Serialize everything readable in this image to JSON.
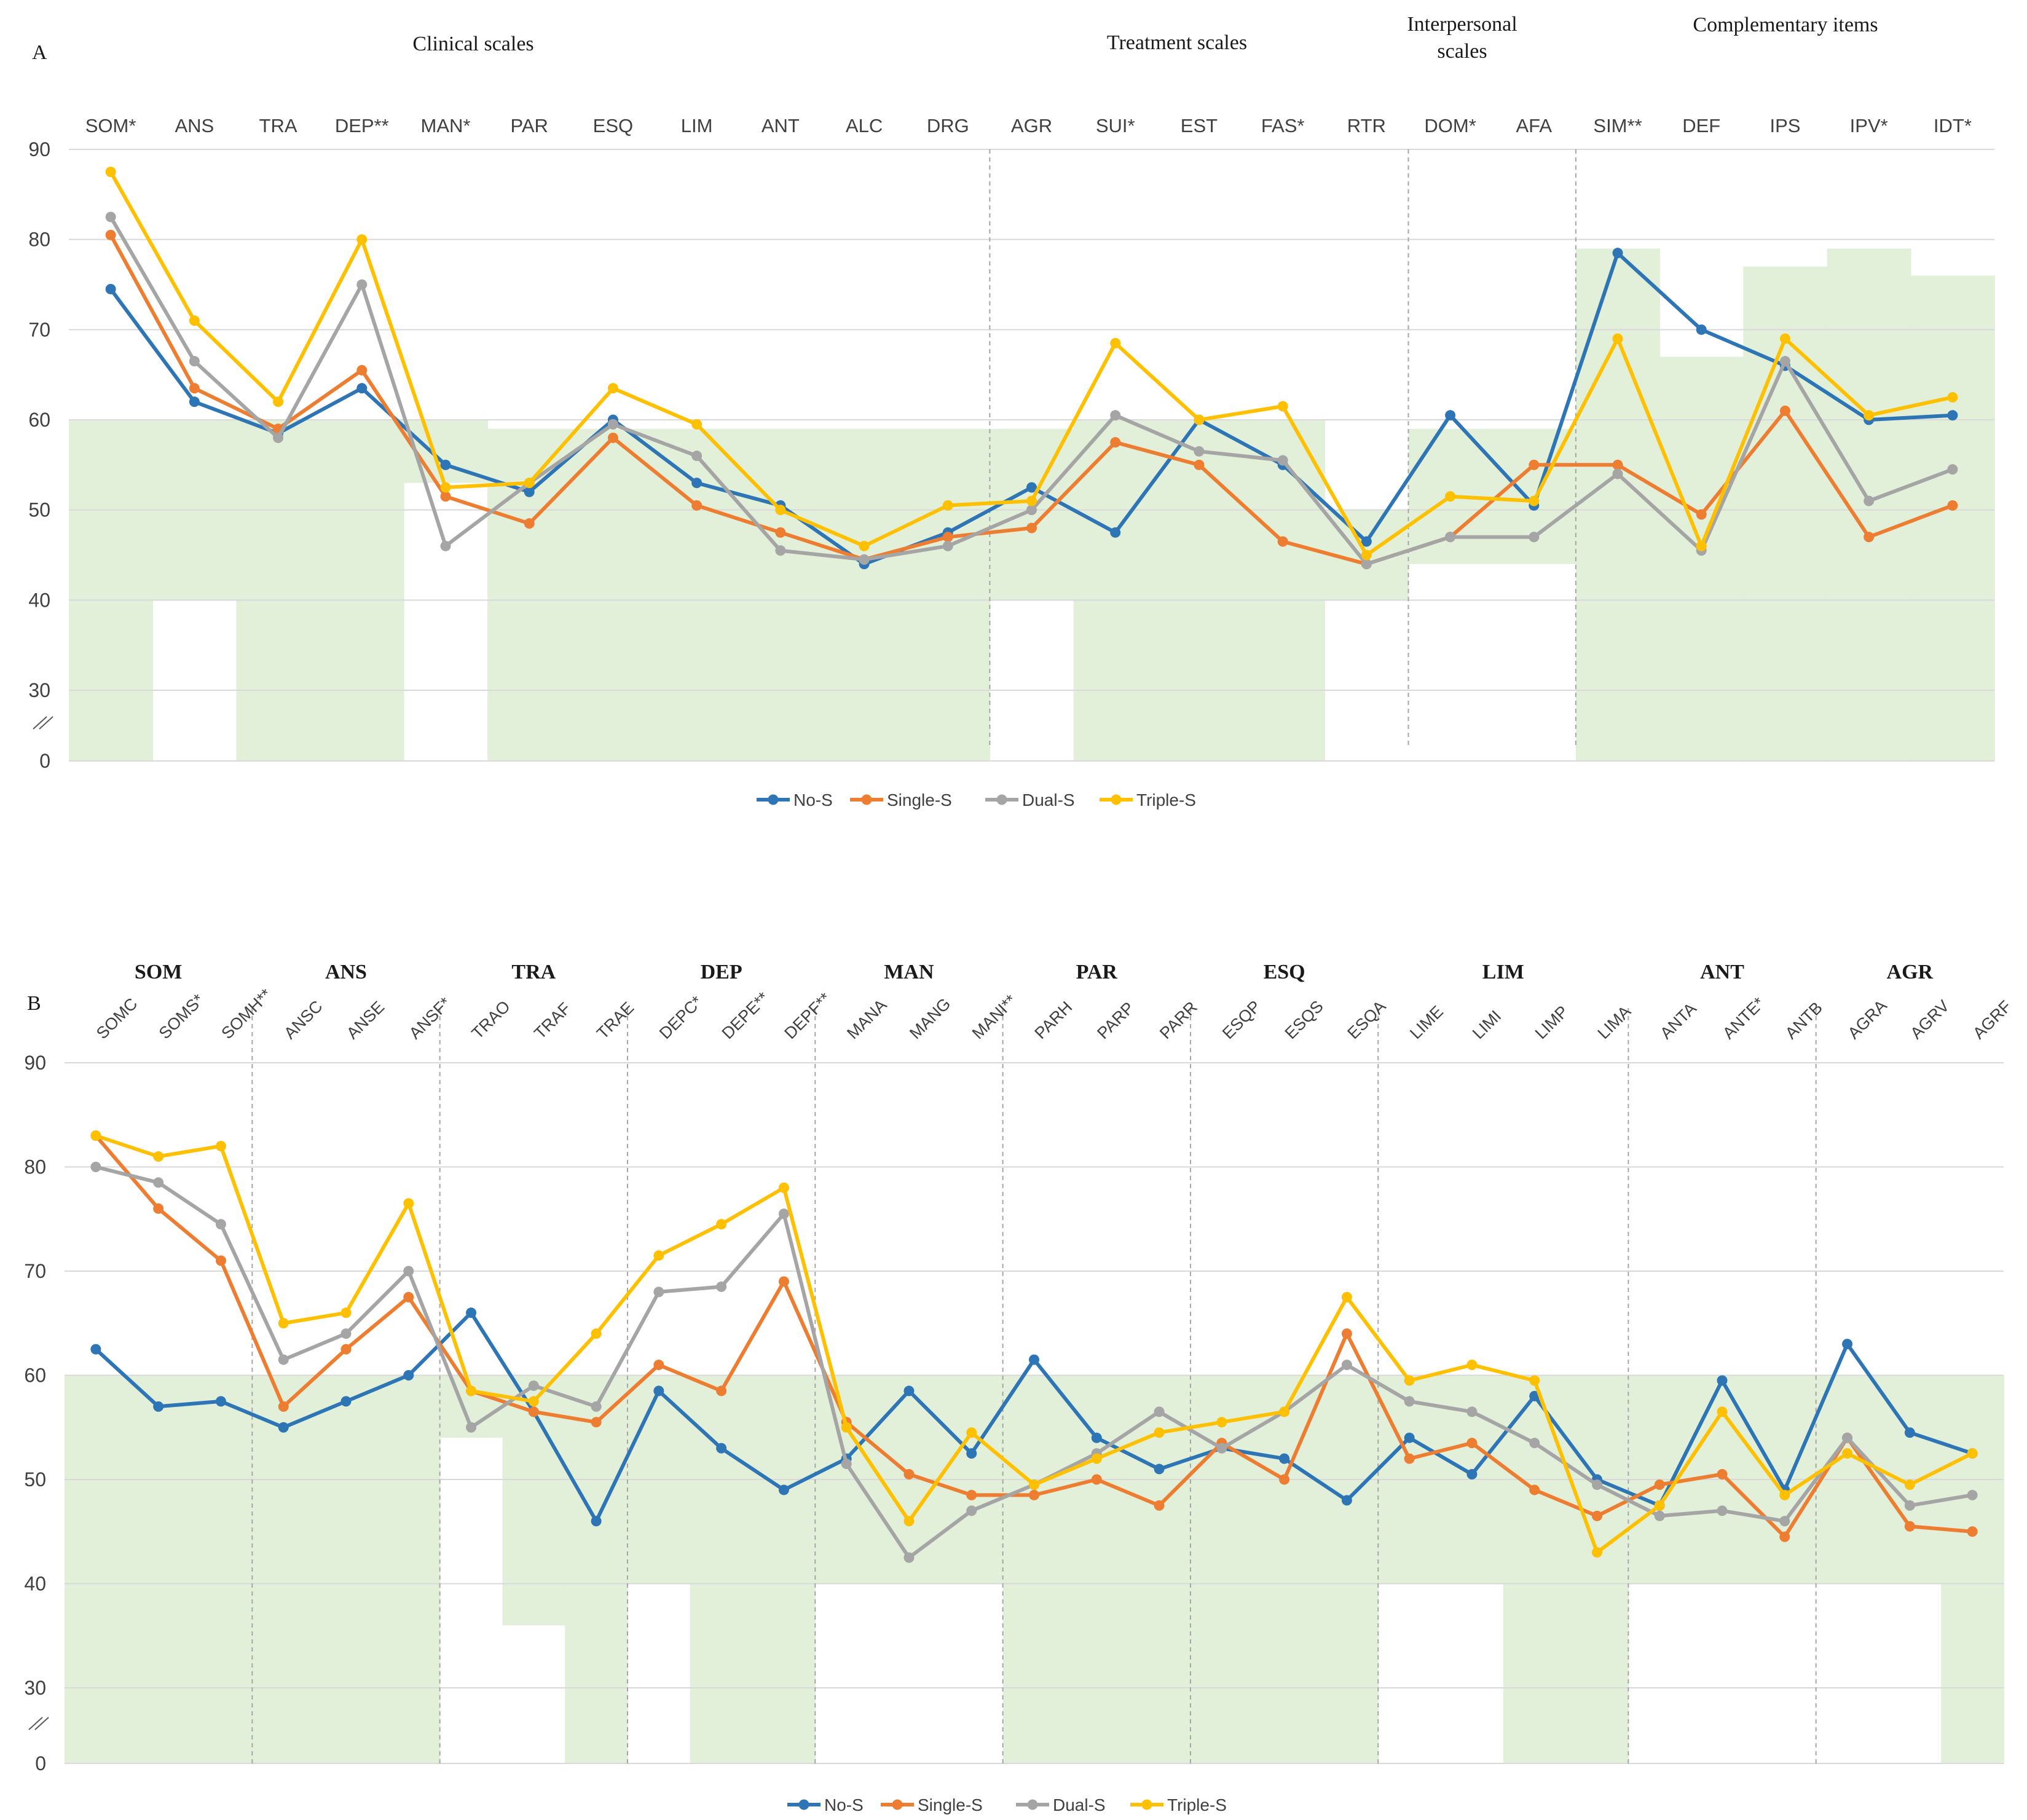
{
  "colors": {
    "No-S": "#2e75b6",
    "Single-S": "#ed7d31",
    "Dual-S": "#a5a5a5",
    "Triple-S": "#ffc000",
    "normal_band": "#e2efd9",
    "gridline": "#d9d9d9",
    "divider": "#a6a6a6"
  },
  "chart_data": [
    {
      "panel": "A",
      "type": "line",
      "groups": [
        {
          "label": "Clinical scales",
          "start": 0,
          "end": 10
        },
        {
          "label": "Treatment scales",
          "start": 11,
          "end": 15
        },
        {
          "label": "Interpersonal scales",
          "start": 16,
          "end": 17
        },
        {
          "label": "Complementary items",
          "start": 18,
          "end": 22
        }
      ],
      "dividers_after": [
        10,
        15,
        17
      ],
      "categories": [
        "SOM*",
        "ANS",
        "TRA",
        "DEP**",
        "MAN*",
        "PAR",
        "ESQ",
        "LIM",
        "ANT",
        "ALC",
        "DRG",
        "AGR",
        "SUI*",
        "EST",
        "FAS*",
        "RTR",
        "DOM*",
        "AFA",
        "SIM**",
        "DEF",
        "IPS",
        "IPV*",
        "IDT*"
      ],
      "normal_range": [
        [
          0,
          60
        ],
        [
          40,
          60
        ],
        [
          0,
          60
        ],
        [
          0,
          60
        ],
        [
          53,
          60
        ],
        [
          0,
          59
        ],
        [
          0,
          59
        ],
        [
          0,
          59
        ],
        [
          0,
          59
        ],
        [
          0,
          59
        ],
        [
          0,
          59
        ],
        [
          40,
          59
        ],
        [
          0,
          60
        ],
        [
          0,
          60
        ],
        [
          0,
          60
        ],
        [
          40,
          50
        ],
        [
          44,
          59
        ],
        [
          44,
          59
        ],
        [
          0,
          79
        ],
        [
          0,
          67
        ],
        [
          0,
          77
        ],
        [
          0,
          79
        ],
        [
          0,
          76
        ]
      ],
      "series": [
        {
          "name": "No-S",
          "values": [
            74.5,
            62,
            58.5,
            63.5,
            55,
            52,
            60,
            53,
            50.5,
            44,
            47.5,
            52.5,
            47.5,
            60,
            55,
            46.5,
            60.5,
            50.5,
            78.5,
            70,
            66,
            60,
            60.5
          ]
        },
        {
          "name": "Single-S",
          "values": [
            80.5,
            63.5,
            59,
            65.5,
            51.5,
            48.5,
            58,
            50.5,
            47.5,
            44.5,
            47,
            48,
            57.5,
            55,
            46.5,
            44,
            47,
            55,
            55,
            49.5,
            61,
            47,
            50.5
          ]
        },
        {
          "name": "Dual-S",
          "values": [
            82.5,
            66.5,
            58,
            75,
            46,
            53,
            59.5,
            56,
            45.5,
            44.5,
            46,
            50,
            60.5,
            56.5,
            55.5,
            44,
            47,
            47,
            54,
            45.5,
            66.5,
            51,
            54.5
          ]
        },
        {
          "name": "Triple-S",
          "values": [
            87.5,
            71,
            62,
            80,
            52.5,
            53,
            63.5,
            59.5,
            50,
            46,
            50.5,
            51,
            68.5,
            60,
            61.5,
            45,
            51.5,
            51,
            69,
            46,
            69,
            60.5,
            62.5
          ]
        }
      ],
      "ylim": [
        0,
        90
      ],
      "yticks": [
        0,
        30,
        40,
        50,
        60,
        70,
        80,
        90
      ],
      "axis_break_between": [
        0,
        30
      ],
      "legend": "bottom-center"
    },
    {
      "panel": "B",
      "type": "line",
      "groups": [
        {
          "label": "SOM",
          "start": 0,
          "end": 2
        },
        {
          "label": "ANS",
          "start": 3,
          "end": 5
        },
        {
          "label": "TRA",
          "start": 6,
          "end": 8
        },
        {
          "label": "DEP",
          "start": 9,
          "end": 11
        },
        {
          "label": "MAN",
          "start": 12,
          "end": 14
        },
        {
          "label": "PAR",
          "start": 15,
          "end": 17
        },
        {
          "label": "ESQ",
          "start": 18,
          "end": 20
        },
        {
          "label": "LIM",
          "start": 21,
          "end": 24
        },
        {
          "label": "ANT",
          "start": 25,
          "end": 27
        },
        {
          "label": "AGR",
          "start": 28,
          "end": 30
        }
      ],
      "dividers_after": [
        2,
        5,
        8,
        11,
        14,
        17,
        20,
        24,
        27
      ],
      "categories": [
        "SOMC",
        "SOMS*",
        "SOMH**",
        "ANSC",
        "ANSE",
        "ANSF*",
        "TRAO",
        "TRAF",
        "TRAE",
        "DEPC*",
        "DEPE**",
        "DEPF**",
        "MANA",
        "MANG",
        "MANI**",
        "PARH",
        "PARP",
        "PARR",
        "ESQP",
        "ESQS",
        "ESQA",
        "LIME",
        "LIMI",
        "LIMP",
        "LIMA",
        "ANTA",
        "ANTE*",
        "ANTB",
        "AGRA",
        "AGRV",
        "AGRF"
      ],
      "normal_range": [
        [
          0,
          60
        ],
        [
          0,
          60
        ],
        [
          0,
          60
        ],
        [
          0,
          60
        ],
        [
          0,
          60
        ],
        [
          0,
          60
        ],
        [
          54,
          60
        ],
        [
          36,
          60
        ],
        [
          0,
          60
        ],
        [
          40,
          60
        ],
        [
          0,
          60
        ],
        [
          0,
          60
        ],
        [
          40,
          60
        ],
        [
          40,
          60
        ],
        [
          40,
          60
        ],
        [
          0,
          60
        ],
        [
          0,
          60
        ],
        [
          0,
          60
        ],
        [
          0,
          60
        ],
        [
          0,
          60
        ],
        [
          0,
          60
        ],
        [
          40,
          60
        ],
        [
          40,
          60
        ],
        [
          0,
          60
        ],
        [
          0,
          60
        ],
        [
          40,
          60
        ],
        [
          40,
          60
        ],
        [
          40,
          60
        ],
        [
          40,
          60
        ],
        [
          40,
          60
        ],
        [
          0,
          60
        ]
      ],
      "series": [
        {
          "name": "No-S",
          "values": [
            62.5,
            57,
            57.5,
            55,
            57.5,
            60,
            66,
            56.5,
            46,
            58.5,
            53,
            49,
            52,
            58.5,
            52.5,
            61.5,
            54,
            51,
            53,
            52,
            48,
            54,
            50.5,
            58,
            50,
            47.5,
            59.5,
            49,
            63,
            54.5,
            52.5
          ]
        },
        {
          "name": "Single-S",
          "values": [
            83,
            76,
            71,
            57,
            62.5,
            67.5,
            58.5,
            56.5,
            55.5,
            61,
            58.5,
            69,
            55.5,
            50.5,
            48.5,
            48.5,
            50,
            47.5,
            53.5,
            50,
            64,
            52,
            53.5,
            49,
            46.5,
            49.5,
            50.5,
            44.5,
            54,
            45.5,
            45
          ]
        },
        {
          "name": "Dual-S",
          "values": [
            80,
            78.5,
            74.5,
            61.5,
            64,
            70,
            55,
            59,
            57,
            68,
            68.5,
            75.5,
            51.5,
            42.5,
            47,
            49.5,
            52.5,
            56.5,
            53,
            56.5,
            61,
            57.5,
            56.5,
            53.5,
            49.5,
            46.5,
            47,
            46,
            54,
            47.5,
            48.5
          ]
        },
        {
          "name": "Triple-S",
          "values": [
            83,
            81,
            82,
            65,
            66,
            76.5,
            58.5,
            57.5,
            64,
            71.5,
            74.5,
            78,
            55,
            46,
            54.5,
            49.5,
            52,
            54.5,
            55.5,
            56.5,
            67.5,
            59.5,
            61,
            59.5,
            43,
            47.5,
            56.5,
            48.5,
            52.5,
            49.5,
            52.5
          ]
        }
      ],
      "ylim": [
        0,
        90
      ],
      "yticks": [
        0,
        30,
        40,
        50,
        60,
        70,
        80,
        90
      ],
      "axis_break_between": [
        0,
        30
      ],
      "legend": "bottom-center"
    }
  ]
}
